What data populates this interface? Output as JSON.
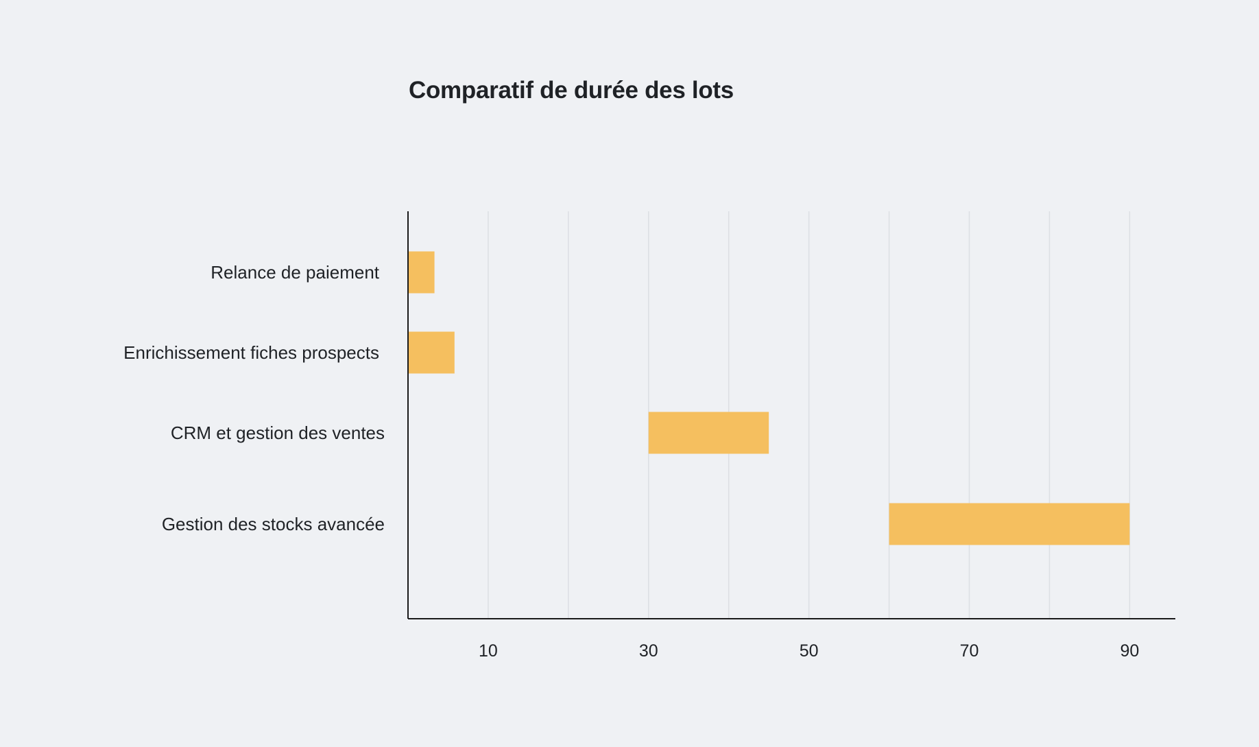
{
  "chart_data": {
    "type": "bar",
    "orientation": "horizontal",
    "title": "Comparatif de durée des lots",
    "xlabel": "",
    "ylabel": "",
    "categories": [
      "Relance de paiement",
      "Enrichissement fiches prospects",
      "CRM et gestion des ventes",
      "Gestion des stocks avancée"
    ],
    "ranges": [
      {
        "start": 0,
        "end": 3.3
      },
      {
        "start": 0,
        "end": 5.8
      },
      {
        "start": 30,
        "end": 45
      },
      {
        "start": 60,
        "end": 90
      }
    ],
    "xlim": [
      0,
      95.7
    ],
    "xticks": [
      10,
      30,
      50,
      70,
      90
    ],
    "grid_values": [
      10,
      20,
      30,
      40,
      50,
      60,
      70,
      80,
      90
    ],
    "grid": true,
    "legend": "none",
    "bar_color": "#f5bf5f"
  }
}
